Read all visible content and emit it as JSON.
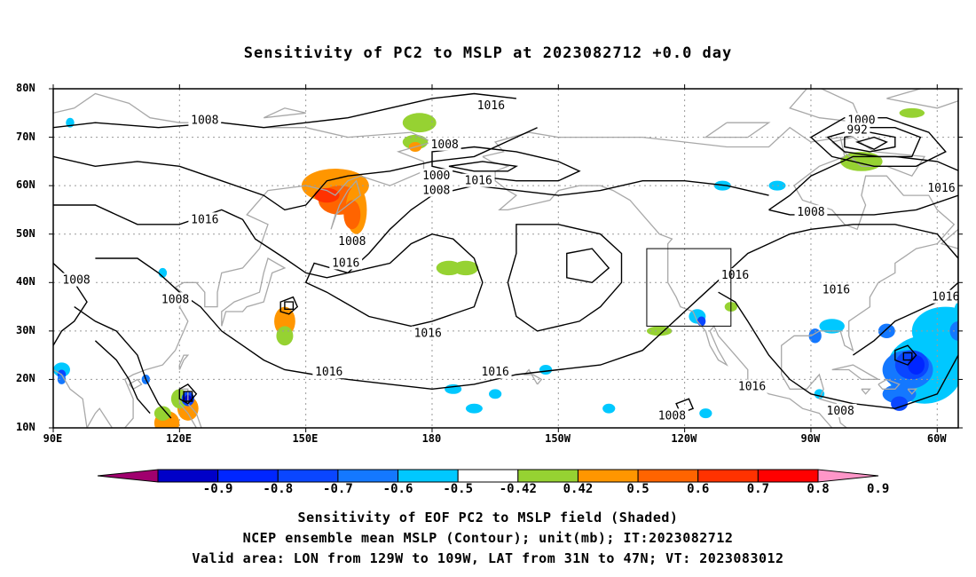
{
  "title": "Sensitivity of PC2 to MSLP at 2023082712 +0.0 day",
  "lat_labels": [
    "80N",
    "70N",
    "60N",
    "50N",
    "40N",
    "30N",
    "20N",
    "10N"
  ],
  "lon_labels": [
    "90E",
    "120E",
    "150E",
    "180",
    "150W",
    "120W",
    "90W",
    "60W"
  ],
  "colorbar": {
    "labels": [
      "-0.9",
      "-0.8",
      "-0.7",
      "-0.6",
      "-0.5",
      "-0.42",
      "0.42",
      "0.5",
      "0.6",
      "0.7",
      "0.8",
      "0.9"
    ],
    "colors": [
      "#a0006e",
      "#0000c8",
      "#0026ff",
      "#0a46ff",
      "#1478ff",
      "#00c8ff",
      "#ffffff",
      "#96d232",
      "#ff9600",
      "#ff6400",
      "#ff3200",
      "#ff0000",
      "#ff96c8"
    ]
  },
  "contour_labels": [
    {
      "text": "1008",
      "lon": 126,
      "lat": 73.5
    },
    {
      "text": "1016",
      "lon": 126,
      "lat": 53
    },
    {
      "text": "1008",
      "lon": 95.5,
      "lat": 40.5
    },
    {
      "text": "1008",
      "lon": 119,
      "lat": 36.5
    },
    {
      "text": "1008",
      "lon": 161,
      "lat": 48.5
    },
    {
      "text": "1016",
      "lon": 159.5,
      "lat": 44
    },
    {
      "text": "1008",
      "lon": -177,
      "lat": 68.5
    },
    {
      "text": "1000",
      "lon": -179,
      "lat": 62
    },
    {
      "text": "1008",
      "lon": -179,
      "lat": 59
    },
    {
      "text": "1016",
      "lon": -169,
      "lat": 61
    },
    {
      "text": "1016",
      "lon": -166,
      "lat": 76.5
    },
    {
      "text": "1000",
      "lon": -78,
      "lat": 73.5
    },
    {
      "text": "992",
      "lon": -79,
      "lat": 71.5
    },
    {
      "text": "1008",
      "lon": -90,
      "lat": 54.5
    },
    {
      "text": "1016",
      "lon": -59,
      "lat": 59.5
    },
    {
      "text": "1016",
      "lon": -108,
      "lat": 41.5
    },
    {
      "text": "1016",
      "lon": -84,
      "lat": 38.5
    },
    {
      "text": "1016",
      "lon": -58,
      "lat": 37
    },
    {
      "text": "1016",
      "lon": -181,
      "lat": 29.5
    },
    {
      "text": "1016",
      "lon": 155.5,
      "lat": 21.5
    },
    {
      "text": "1016",
      "lon": -165,
      "lat": 21.5
    },
    {
      "text": "1016",
      "lon": -104,
      "lat": 18.5
    },
    {
      "text": "1008",
      "lon": -123,
      "lat": 12.5
    },
    {
      "text": "1008",
      "lon": -83,
      "lat": 13.5
    }
  ],
  "captions": [
    "Sensitivity of EOF PC2 to MSLP field (Shaded)",
    "NCEP ensemble mean MSLP (Contour); unit(mb); IT:2023082712",
    "Valid area: LON from 129W to 109W, LAT from 31N to 47N; VT: 2023083012"
  ]
}
